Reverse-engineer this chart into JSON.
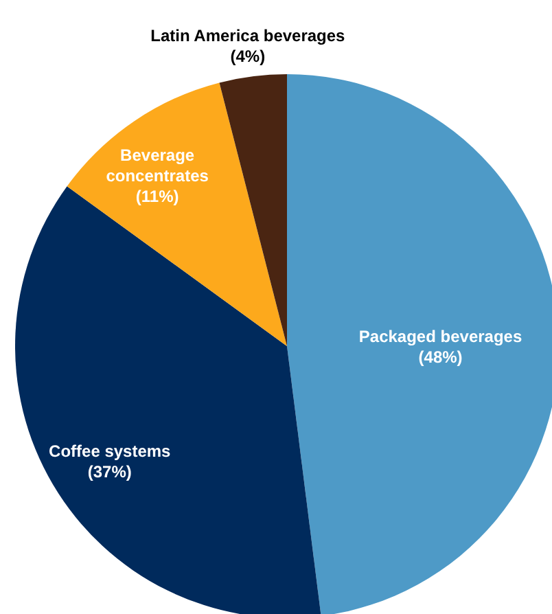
{
  "chart_data": {
    "type": "pie",
    "categories": [
      "Packaged beverages",
      "Coffee systems",
      "Beverage concentrates",
      "Latin America beverages"
    ],
    "values": [
      48,
      37,
      11,
      4
    ],
    "colors": [
      "#4e9ac7",
      "#002a5c",
      "#fda91c",
      "#4a2512"
    ],
    "value_labels": [
      "(48%)",
      "(37%)",
      "(11%)",
      "(4%)"
    ]
  }
}
